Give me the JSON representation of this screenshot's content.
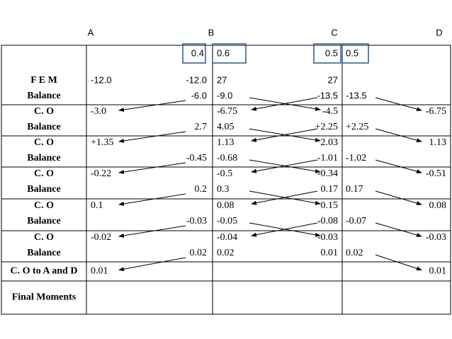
{
  "header": {
    "columns": [
      "A",
      "B",
      "C",
      "D"
    ]
  },
  "distribution_factors": [
    "0.4",
    "0.6",
    "0.5",
    "0.5"
  ],
  "rows": [
    {
      "label": [
        "F E M",
        "Balance"
      ],
      "lines": [
        [
          "-12.0",
          "-12.0",
          "27",
          "27",
          null,
          null
        ],
        [
          null,
          "-6.0",
          "-9.0",
          "-13.5",
          "-13.5",
          null
        ]
      ]
    },
    {
      "label": [
        "C. O",
        "Balance"
      ],
      "lines": [
        [
          "-3.0",
          null,
          "-6.75",
          "-4.5",
          null,
          "-6.75"
        ],
        [
          null,
          "2.7",
          "4.05",
          "+2.25",
          "+2.25",
          null
        ]
      ]
    },
    {
      "label": [
        "C. O",
        "Balance"
      ],
      "lines": [
        [
          "+1.35",
          null,
          "1.13",
          "2.03",
          null,
          "1.13"
        ],
        [
          null,
          "-0.45",
          "-0.68",
          "-1.01",
          "-1.02",
          null
        ]
      ]
    },
    {
      "label": [
        "C. O",
        "Balance"
      ],
      "lines": [
        [
          "-0.22",
          null,
          "-0.5",
          "-0.34",
          null,
          "-0.51"
        ],
        [
          null,
          "0.2",
          "0.3",
          "0.17",
          "0.17",
          null
        ]
      ]
    },
    {
      "label": [
        "C. O",
        "Balance"
      ],
      "lines": [
        [
          "0.1",
          null,
          "0.08",
          "0.15",
          null,
          "0.08"
        ],
        [
          null,
          "-0.03",
          "-0.05",
          "-0.08",
          "-0.07",
          null
        ]
      ]
    },
    {
      "label": [
        "C. O",
        "Balance"
      ],
      "lines": [
        [
          "-0.02",
          null,
          "-0.04",
          "-0.03",
          null,
          "-0.03"
        ],
        [
          null,
          "0.02",
          "0.02",
          "0.01",
          "0.02",
          null
        ]
      ]
    },
    {
      "label": [
        "C. O to A and D"
      ],
      "lines": [
        [
          "0.01",
          null,
          null,
          null,
          null,
          "0.01"
        ]
      ]
    },
    {
      "label": [
        "Final Moments"
      ],
      "lines": []
    }
  ]
}
